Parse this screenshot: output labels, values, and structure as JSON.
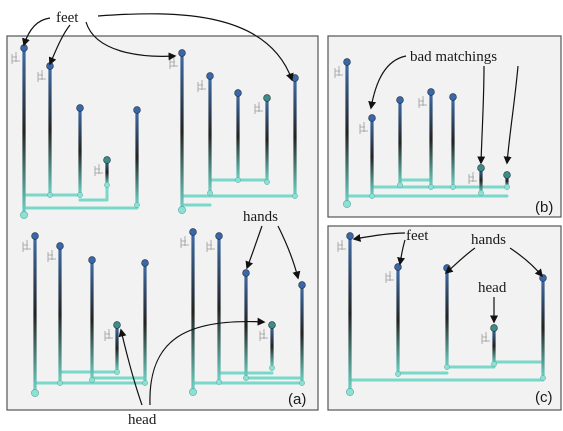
{
  "annotations": {
    "feet_a": "feet",
    "hands_a": "hands",
    "head_a": "head",
    "bad_matchings": "bad matchings",
    "feet_c": "feet",
    "hands_c": "hands",
    "head_c": "head"
  },
  "panels": {
    "a": "(a)",
    "b": "(b)",
    "c": "(c)"
  },
  "colors": {
    "panel_bg": "#f2f2f2",
    "panel_border": "#555555",
    "branch_top": "#3f6ea8",
    "branch_mid": "#222222",
    "branch_bottom": "#6fd6c8",
    "node_blue": "#3a67a8",
    "node_teal": "#3c8d86",
    "node_light": "#8fe0d4",
    "arrow": "#111111"
  }
}
